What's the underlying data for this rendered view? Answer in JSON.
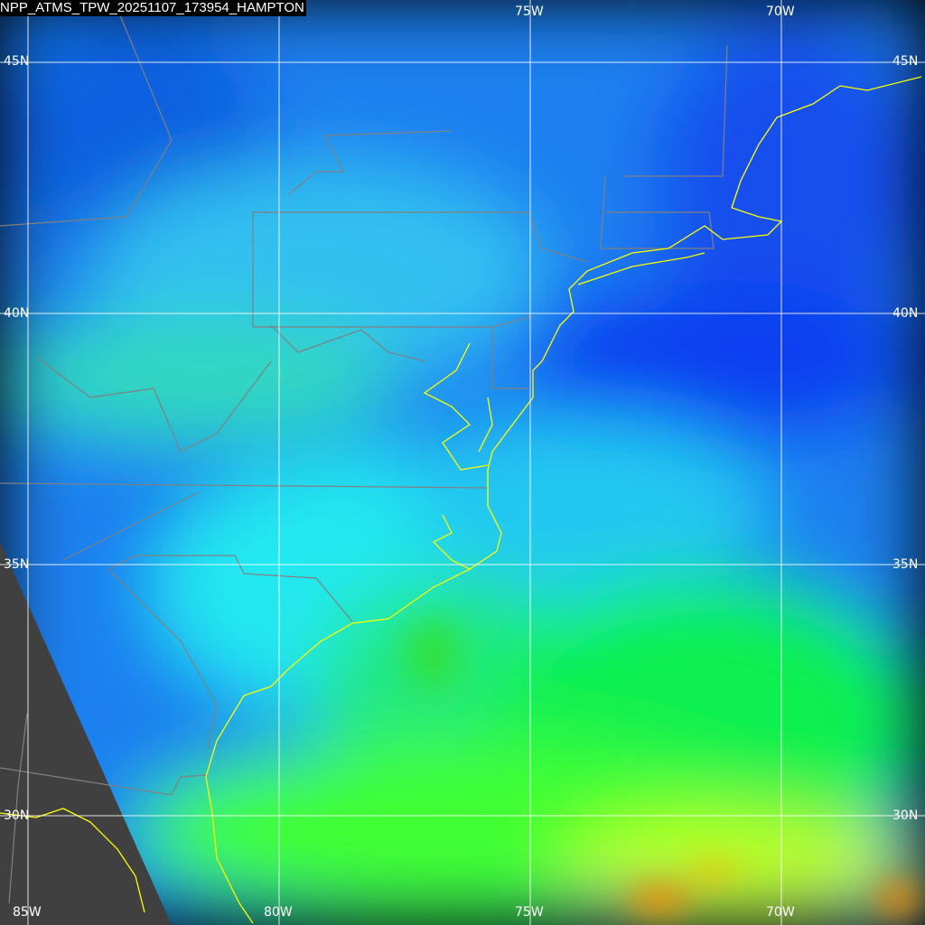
{
  "title": "NPP_ATMS_TPW_20251107_173954_HAMPTON",
  "grid": {
    "lon_labels_top": [
      "75W",
      "70W"
    ],
    "lon_labels_bottom": [
      "85W",
      "80W",
      "75W",
      "70W"
    ],
    "lat_labels_left": [
      "45N",
      "40N",
      "35N",
      "30N"
    ],
    "lat_labels_right": [
      "45N",
      "40N",
      "35N",
      "30N"
    ]
  },
  "colors": {
    "coastline": "#ffff00",
    "borders": "#808080",
    "gridlines": "#ffffff",
    "no_data": "#404040",
    "low_tpw": "#0030ff",
    "mid_tpw": "#00ffff",
    "high_tpw": "#00ff00",
    "very_high_tpw": "#ff8000"
  }
}
